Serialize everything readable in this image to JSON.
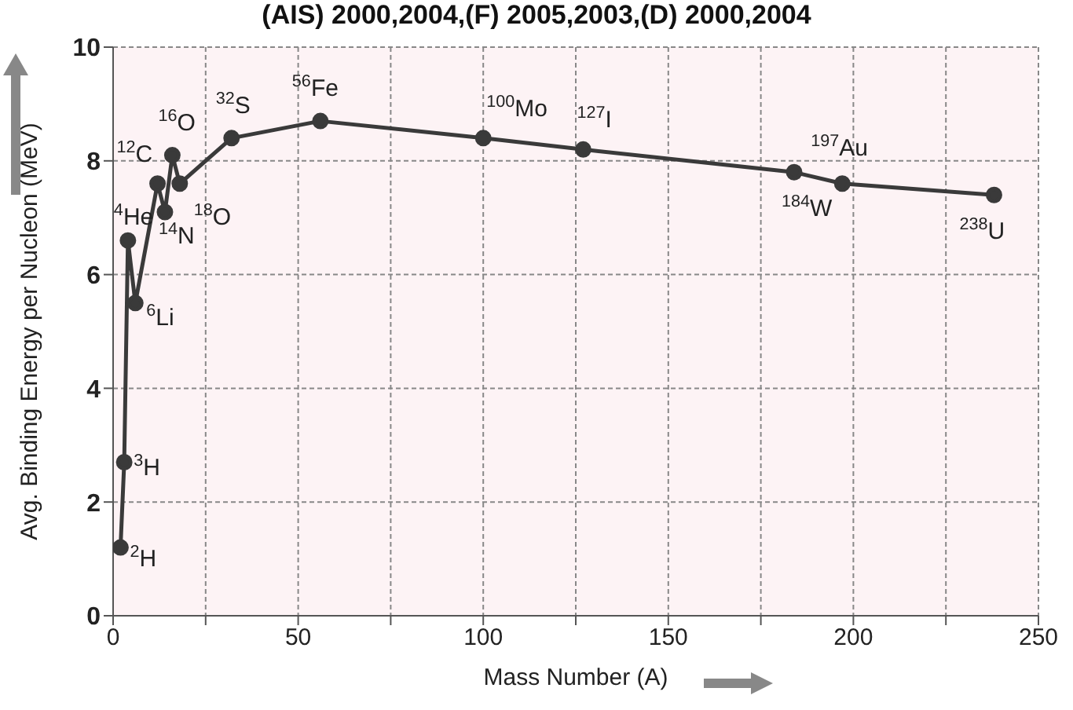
{
  "chart_data": {
    "type": "line",
    "xlabel": "Mass Number (A)",
    "ylabel": "Avg. Binding Energy per Nucleon (MeV)",
    "x": [
      2,
      3,
      4,
      6,
      12,
      14,
      16,
      18,
      32,
      56,
      100,
      127,
      184,
      197,
      238
    ],
    "series": [
      {
        "color": "#3a3a3a",
        "values": [
          1.2,
          2.7,
          6.6,
          5.5,
          7.6,
          7.1,
          8.1,
          7.6,
          8.4,
          8.7,
          8.4,
          8.2,
          7.8,
          7.6,
          7.4
        ]
      }
    ],
    "xlim": [
      0,
      250
    ],
    "xticks": [
      0,
      {
        "value": 25,
        "label": null
      },
      50,
      {
        "value": 75,
        "label": null
      },
      100,
      {
        "value": 125,
        "label": null
      },
      150,
      {
        "value": 175,
        "label": null
      },
      200,
      {
        "value": 225,
        "label": null
      },
      250
    ],
    "ylim": [
      0,
      10
    ],
    "yticks": [
      0,
      2,
      4,
      6,
      8,
      10
    ],
    "grid": true,
    "legend": false,
    "marker": "circle",
    "line_style": "solid",
    "annotations": [
      "(AIS) 2000,2004,(F) 2005,2003,(D) 2000,2004",
      {
        "text": "$^{2}$H",
        "x": 2,
        "y": 1.2
      },
      {
        "text": "$^{3}$H",
        "x": 3,
        "y": 2.7
      },
      {
        "text": "$^{4}$He",
        "x": 4,
        "y": 6.6
      },
      {
        "text": "$^{6}$Li",
        "x": 6,
        "y": 5.5
      },
      {
        "text": "$^{12}$C",
        "x": 12,
        "y": 7.6
      },
      {
        "text": "$^{14}$N",
        "x": 14,
        "y": 7.1
      },
      {
        "text": "$^{16}$O",
        "x": 16,
        "y": 8.1
      },
      {
        "text": "$^{18}$O",
        "x": 18,
        "y": 7.6
      },
      {
        "text": "$^{32}$S",
        "x": 32,
        "y": 8.4
      },
      {
        "text": "$^{56}$Fe",
        "x": 56,
        "y": 8.7
      },
      {
        "text": "$^{100}$Mo",
        "x": 100,
        "y": 8.4
      },
      {
        "text": "$^{127}$I",
        "x": 127,
        "y": 8.2
      },
      {
        "text": "$^{184}$W",
        "x": 184,
        "y": 7.8
      },
      {
        "text": "$^{197}$Au",
        "x": 197,
        "y": 7.6
      },
      {
        "text": "$^{238}$U",
        "x": 238,
        "y": 7.4
      }
    ]
  }
}
